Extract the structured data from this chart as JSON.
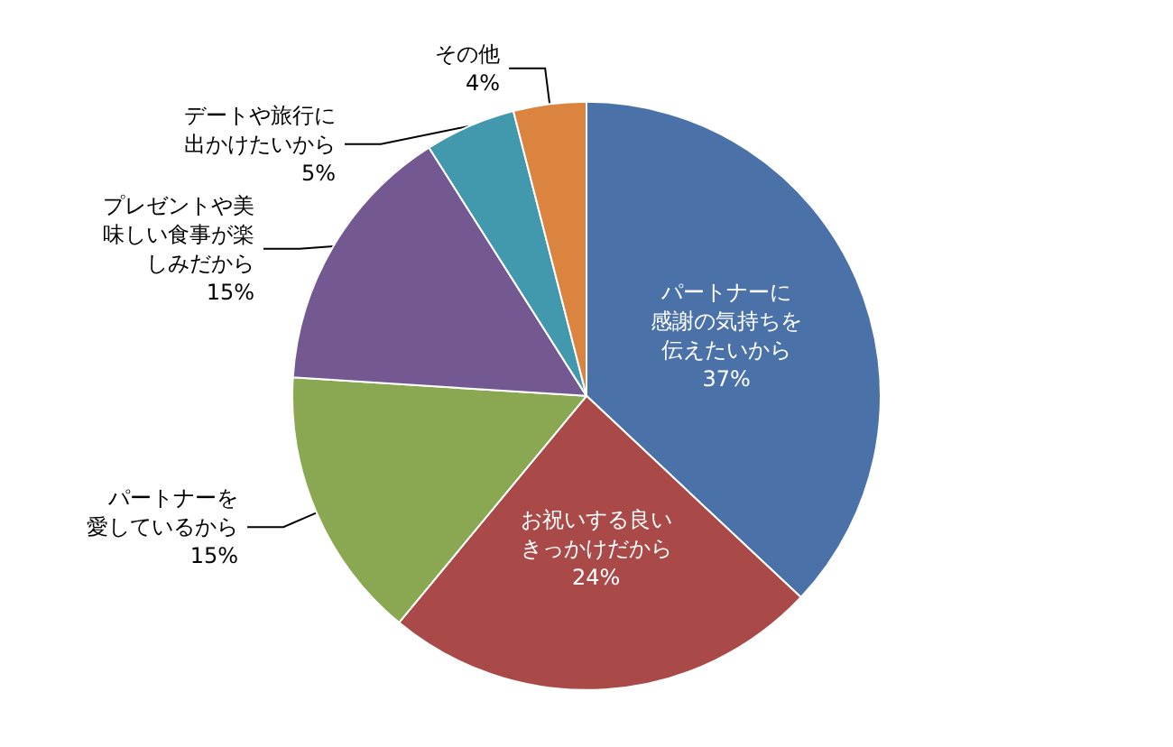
{
  "chart_data": {
    "type": "pie",
    "categories": [
      "パートナーに感謝の気持ちを伝えたいから",
      "お祝いする良いきっかけだから",
      "パートナーを愛しているから",
      "プレゼントや美味しい食事が楽しみだから",
      "デートや旅行に出かけたいから",
      "その他"
    ],
    "values": [
      37,
      24,
      15,
      15,
      5,
      4
    ],
    "colors": [
      "#4a72a8",
      "#a94a48",
      "#8aa852",
      "#735892",
      "#4298ad",
      "#da8440"
    ],
    "value_labels": [
      "37%",
      "24%",
      "15%",
      "15%",
      "5%",
      "4%"
    ],
    "legend": false
  }
}
